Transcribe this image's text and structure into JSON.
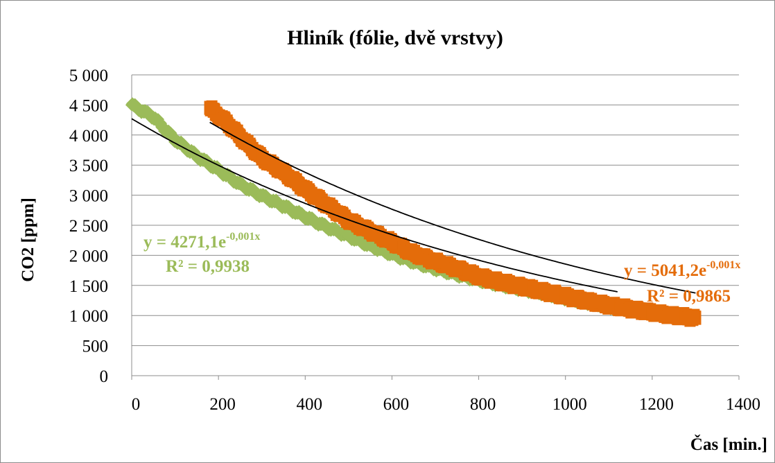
{
  "chart_data": {
    "type": "scatter",
    "title": "Hliník (fólie, dvě vrstvy)",
    "xlabel": "Čas [min.]",
    "ylabel": "CO2 [ppm]",
    "xlim": [
      0,
      1400
    ],
    "ylim": [
      0,
      5000
    ],
    "x_ticks": [
      0,
      200,
      400,
      600,
      800,
      1000,
      1200,
      1400
    ],
    "x_tick_labels": [
      "0",
      "200",
      "400",
      "600",
      "800",
      "1000",
      "1200",
      "1400"
    ],
    "y_ticks": [
      0,
      500,
      1000,
      1500,
      2000,
      2500,
      3000,
      3500,
      4000,
      4500,
      5000
    ],
    "y_tick_labels": [
      "0",
      "500",
      "1 000",
      "1 500",
      "2 000",
      "2 500",
      "3 000",
      "3 500",
      "4 000",
      "4 500",
      "5 000"
    ],
    "grid": "horizontal",
    "legend": "none",
    "series": [
      {
        "color": "#9bbb59",
        "x_range": [
          0,
          1120
        ],
        "fit": {
          "type": "exponential",
          "a": 4271.1,
          "b": -0.001
        },
        "equation_base": "y = 4271,1e",
        "equation_exp": "-0,001x",
        "r2_label": "R² = 0,9938",
        "points": [
          [
            0,
            4500
          ],
          [
            50,
            4300
          ],
          [
            100,
            3920
          ],
          [
            150,
            3650
          ],
          [
            200,
            3420
          ],
          [
            250,
            3180
          ],
          [
            300,
            2990
          ],
          [
            350,
            2820
          ],
          [
            400,
            2640
          ],
          [
            450,
            2470
          ],
          [
            500,
            2320
          ],
          [
            550,
            2160
          ],
          [
            600,
            2020
          ],
          [
            650,
            1890
          ],
          [
            700,
            1780
          ],
          [
            750,
            1680
          ],
          [
            800,
            1590
          ],
          [
            850,
            1510
          ],
          [
            900,
            1440
          ],
          [
            950,
            1370
          ],
          [
            1000,
            1290
          ],
          [
            1050,
            1220
          ],
          [
            1100,
            1150
          ],
          [
            1120,
            1110
          ]
        ]
      },
      {
        "color": "#e46c0a",
        "x_range": [
          180,
          1300
        ],
        "fit": {
          "type": "exponential",
          "a": 5041.2,
          "b": -0.001
        },
        "equation_base": "y = 5041,2e",
        "equation_exp": "-0,001x",
        "r2_label": "R² = 0,9865",
        "points": [
          [
            180,
            4450
          ],
          [
            220,
            4200
          ],
          [
            260,
            3900
          ],
          [
            300,
            3620
          ],
          [
            350,
            3380
          ],
          [
            400,
            3100
          ],
          [
            450,
            2840
          ],
          [
            500,
            2580
          ],
          [
            550,
            2400
          ],
          [
            600,
            2220
          ],
          [
            650,
            2030
          ],
          [
            700,
            1900
          ],
          [
            750,
            1780
          ],
          [
            800,
            1650
          ],
          [
            850,
            1560
          ],
          [
            900,
            1480
          ],
          [
            950,
            1400
          ],
          [
            1000,
            1320
          ],
          [
            1050,
            1240
          ],
          [
            1100,
            1170
          ],
          [
            1150,
            1110
          ],
          [
            1200,
            1050
          ],
          [
            1250,
            1000
          ],
          [
            1300,
            960
          ]
        ]
      }
    ]
  }
}
